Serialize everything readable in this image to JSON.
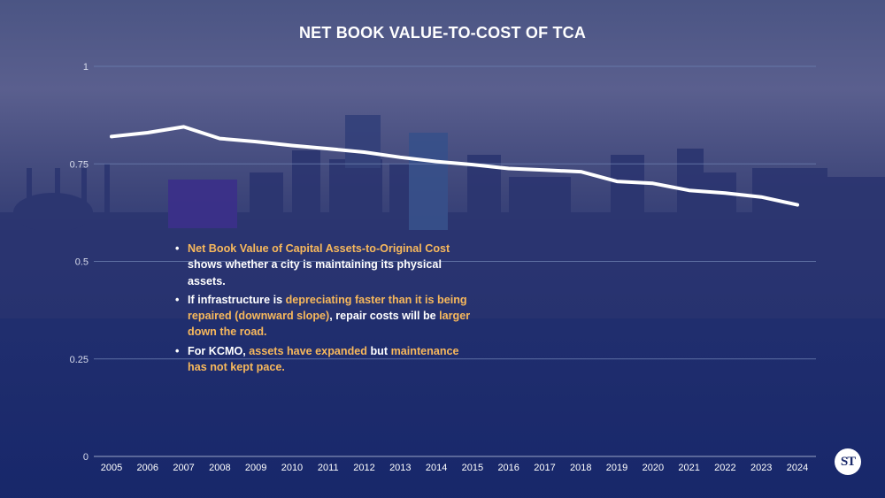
{
  "title": "NET BOOK VALUE-TO-COST OF TCA",
  "chart_data": {
    "type": "line",
    "title": "NET BOOK VALUE-TO-COST OF TCA",
    "xlabel": "",
    "ylabel": "",
    "ylim": [
      0,
      1
    ],
    "yticks": [
      "0",
      "0.25",
      "0.5",
      "0.75",
      "1"
    ],
    "x": [
      "2005",
      "2006",
      "2007",
      "2008",
      "2009",
      "2010",
      "2011",
      "2012",
      "2013",
      "2014",
      "2015",
      "2016",
      "2017",
      "2018",
      "2019",
      "2020",
      "2021",
      "2022",
      "2023",
      "2024"
    ],
    "series": [
      {
        "values": [
          0.82,
          0.83,
          0.845,
          0.815,
          0.807,
          0.797,
          0.789,
          0.78,
          0.767,
          0.756,
          0.748,
          0.738,
          0.734,
          0.73,
          0.705,
          0.7,
          0.682,
          0.675,
          0.665,
          0.645
        ],
        "color": "#ffffff"
      }
    ],
    "grid": true,
    "legend": "none"
  },
  "notes": [
    {
      "parts": [
        {
          "text": "Net Book Value of Capital Assets-to-Original Cost",
          "highlight": true
        },
        {
          "text": " shows whether a city is maintaining its physical assets.",
          "highlight": false
        }
      ]
    },
    {
      "parts": [
        {
          "text": "If infrastructure is ",
          "highlight": false
        },
        {
          "text": "depreciating faster than it is being repaired (downward slope)",
          "highlight": true
        },
        {
          "text": ", repair costs will be ",
          "highlight": false
        },
        {
          "text": "larger down the road.",
          "highlight": true
        }
      ]
    },
    {
      "parts": [
        {
          "text": "For KCMO, ",
          "highlight": false
        },
        {
          "text": "assets have expanded",
          "highlight": true
        },
        {
          "text": " but ",
          "highlight": false
        },
        {
          "text": "maintenance has not kept pace.",
          "highlight": true
        }
      ]
    }
  ],
  "logo": {
    "text": "ST"
  },
  "colors": {
    "highlight": "#f7b85c",
    "line": "#ffffff",
    "grid": "#6c7fb0"
  }
}
